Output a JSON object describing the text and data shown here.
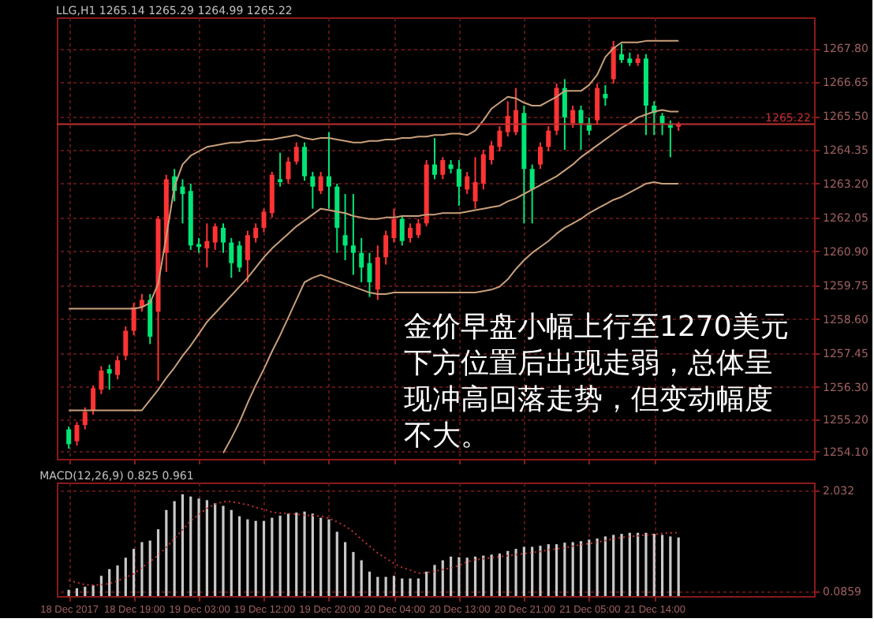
{
  "chart_data": [
    {
      "type": "candlestick",
      "title": "LLG,H1 1265.14 1265.29 1264.99 1265.22",
      "categories": [
        null,
        null,
        null,
        null,
        null,
        null,
        null,
        null,
        null,
        null,
        null,
        null,
        null,
        null,
        null,
        null,
        null,
        null,
        null,
        null,
        null,
        null,
        null,
        null,
        null,
        null,
        null,
        null,
        null,
        null,
        null,
        null,
        null,
        null,
        null,
        null,
        null,
        null,
        null,
        null,
        null,
        null,
        null,
        null,
        null,
        null,
        null,
        null,
        null,
        null,
        null,
        null,
        null,
        null,
        null,
        null,
        null,
        null,
        null,
        null,
        null,
        null,
        null,
        null,
        null,
        null,
        null,
        null,
        null,
        null,
        null,
        null,
        null,
        null,
        null,
        null
      ],
      "ohlc": [
        [
          1254.85,
          1254.95,
          1254.2,
          1254.35
        ],
        [
          1254.45,
          1255.1,
          1254.3,
          1255.0
        ],
        [
          1255.0,
          1255.6,
          1254.85,
          1255.45
        ],
        [
          1255.5,
          1256.35,
          1255.35,
          1256.25
        ],
        [
          1256.2,
          1257.0,
          1256.05,
          1256.85
        ],
        [
          1256.9,
          1257.05,
          1256.2,
          1256.75
        ],
        [
          1256.7,
          1257.35,
          1256.55,
          1257.2
        ],
        [
          1257.35,
          1258.35,
          1257.2,
          1258.2
        ],
        [
          1258.2,
          1259.15,
          1258.05,
          1259.0
        ],
        [
          1259.0,
          1259.45,
          1258.85,
          1259.25
        ],
        [
          1259.25,
          1259.45,
          1257.75,
          1258.0
        ],
        [
          1258.85,
          1262.1,
          1256.5,
          1262.0
        ],
        [
          1260.85,
          1263.5,
          1260.2,
          1263.35
        ],
        [
          1263.45,
          1263.7,
          1262.6,
          1262.95
        ],
        [
          1263.1,
          1263.35,
          1261.85,
          1262.85
        ],
        [
          1262.95,
          1263.2,
          1260.95,
          1261.1
        ],
        [
          1261.15,
          1261.35,
          1260.85,
          1261.05
        ],
        [
          1261.0,
          1261.85,
          1260.35,
          1261.25
        ],
        [
          1261.2,
          1261.85,
          1260.95,
          1261.75
        ],
        [
          1261.7,
          1261.85,
          1260.85,
          1261.2
        ],
        [
          1261.2,
          1261.35,
          1260.0,
          1260.5
        ],
        [
          1261.1,
          1261.25,
          1260.2,
          1260.35
        ],
        [
          1260.6,
          1261.6,
          1259.85,
          1261.45
        ],
        [
          1261.35,
          1261.85,
          1261.2,
          1261.7
        ],
        [
          1261.7,
          1262.35,
          1261.55,
          1262.25
        ],
        [
          1262.2,
          1263.6,
          1262.05,
          1263.5
        ],
        [
          1263.35,
          1264.25,
          1263.1,
          1263.25
        ],
        [
          1263.35,
          1264.1,
          1263.2,
          1263.95
        ],
        [
          1263.95,
          1264.6,
          1263.85,
          1264.45
        ],
        [
          1264.45,
          1264.6,
          1263.3,
          1263.45
        ],
        [
          1263.45,
          1263.6,
          1262.35,
          1263.1
        ],
        [
          1262.95,
          1263.6,
          1262.85,
          1263.45
        ],
        [
          1263.45,
          1264.95,
          1262.35,
          1263.1
        ],
        [
          1263.1,
          1263.2,
          1260.85,
          1261.7
        ],
        [
          1261.45,
          1262.85,
          1260.6,
          1261.1
        ],
        [
          1261.1,
          1262.85,
          1260.1,
          1260.85
        ],
        [
          1260.85,
          1261.35,
          1259.85,
          1260.35
        ],
        [
          1260.5,
          1260.85,
          1259.35,
          1259.85
        ],
        [
          1259.6,
          1261.1,
          1259.25,
          1260.7
        ],
        [
          1260.7,
          1261.6,
          1260.45,
          1261.45
        ],
        [
          1261.35,
          1262.35,
          1261.2,
          1262.0
        ],
        [
          1262.0,
          1262.1,
          1261.1,
          1261.25
        ],
        [
          1261.35,
          1261.85,
          1261.2,
          1261.7
        ],
        [
          1261.45,
          1262.0,
          1261.35,
          1261.85
        ],
        [
          1261.85,
          1264.0,
          1261.75,
          1263.85
        ],
        [
          1263.85,
          1264.75,
          1263.35,
          1263.5
        ],
        [
          1263.5,
          1264.1,
          1263.35,
          1264.0
        ],
        [
          1263.85,
          1264.0,
          1263.55,
          1263.7
        ],
        [
          1263.7,
          1264.0,
          1262.45,
          1263.1
        ],
        [
          1263.0,
          1263.6,
          1262.85,
          1263.45
        ],
        [
          1262.6,
          1264.1,
          1262.35,
          1263.25
        ],
        [
          1263.2,
          1264.35,
          1263.0,
          1264.2
        ],
        [
          1264.0,
          1264.65,
          1263.85,
          1264.5
        ],
        [
          1264.45,
          1265.15,
          1264.3,
          1265.0
        ],
        [
          1264.95,
          1266.0,
          1264.8,
          1265.5
        ],
        [
          1264.95,
          1266.45,
          1264.85,
          1265.7
        ],
        [
          1265.6,
          1265.85,
          1261.85,
          1263.7
        ],
        [
          1263.7,
          1263.85,
          1261.85,
          1263.0
        ],
        [
          1263.85,
          1264.6,
          1263.7,
          1264.45
        ],
        [
          1264.45,
          1265.15,
          1264.3,
          1265.0
        ],
        [
          1265.0,
          1266.6,
          1264.85,
          1266.45
        ],
        [
          1266.45,
          1266.75,
          1264.35,
          1265.45
        ],
        [
          1265.25,
          1265.85,
          1265.1,
          1265.7
        ],
        [
          1265.7,
          1265.85,
          1264.35,
          1265.25
        ],
        [
          1265.25,
          1265.45,
          1264.85,
          1265.0
        ],
        [
          1265.35,
          1266.6,
          1265.2,
          1266.45
        ],
        [
          1266.25,
          1266.55,
          1265.85,
          1266.1
        ],
        [
          1266.75,
          1268.05,
          1266.6,
          1267.85
        ],
        [
          1267.6,
          1267.95,
          1267.3,
          1267.4
        ],
        [
          1267.45,
          1267.65,
          1267.2,
          1267.3
        ],
        [
          1267.3,
          1267.6,
          1267.2,
          1267.45
        ],
        [
          1267.45,
          1267.6,
          1264.85,
          1265.85
        ],
        [
          1265.85,
          1266.0,
          1264.85,
          1265.6
        ],
        [
          1265.5,
          1265.6,
          1264.85,
          1265.25
        ],
        [
          1265.2,
          1265.35,
          1264.1,
          1265.1
        ],
        [
          1265.14,
          1265.29,
          1264.99,
          1265.22
        ]
      ],
      "colors": [
        "#00e676",
        "#ff3333",
        "#ff3333",
        "#ff3333",
        "#ff3333",
        "#00e676",
        "#ff3333",
        "#ff3333",
        "#ff3333",
        "#ff3333",
        "#00e676",
        "#ff3333",
        "#ff3333",
        "#00e676",
        "#00e676",
        "#00e676",
        "#00e676",
        "#ff3333",
        "#ff3333",
        "#00e676",
        "#00e676",
        "#00e676",
        "#ff3333",
        "#ff3333",
        "#ff3333",
        "#ff3333",
        "#00e676",
        "#ff3333",
        "#ff3333",
        "#00e676",
        "#00e676",
        "#ff3333",
        "#00e676",
        "#00e676",
        "#00e676",
        "#00e676",
        "#00e676",
        "#00e676",
        "#ff3333",
        "#ff3333",
        "#ff3333",
        "#00e676",
        "#ff3333",
        "#ff3333",
        "#ff3333",
        "#00e676",
        "#ff3333",
        "#00e676",
        "#00e676",
        "#ff3333",
        "#ff3333",
        "#ff3333",
        "#ff3333",
        "#ff3333",
        "#ff3333",
        "#ff3333",
        "#00e676",
        "#00e676",
        "#ff3333",
        "#ff3333",
        "#ff3333",
        "#00e676",
        "#ff3333",
        "#00e676",
        "#00e676",
        "#ff3333",
        "#00e676",
        "#ff3333",
        "#00e676",
        "#00e676",
        "#ff3333",
        "#00e676",
        "#00e676",
        "#00e676",
        "#00e676",
        "#ff3333"
      ],
      "series": [
        {
          "type": "line",
          "color": "#c8a07a",
          "values": [
            1258.95,
            1258.95,
            1258.95,
            1258.95,
            1258.95,
            1258.95,
            1258.95,
            1258.95,
            1258.95,
            1259.0,
            1259.15,
            1259.8,
            1261.4,
            1263.1,
            1263.85,
            1264.15,
            1264.3,
            1264.45,
            1264.5,
            1264.55,
            1264.6,
            1264.6,
            1264.65,
            1264.65,
            1264.7,
            1264.7,
            1264.75,
            1264.8,
            1264.85,
            1264.75,
            1264.7,
            1264.75,
            1264.75,
            1264.7,
            1264.65,
            1264.6,
            1264.6,
            1264.65,
            1264.65,
            1264.7,
            1264.7,
            1264.75,
            1264.75,
            1264.8,
            1264.8,
            1264.85,
            1264.85,
            1264.9,
            1264.9,
            1264.85,
            1265.0,
            1265.35,
            1265.75,
            1265.95,
            1266.15,
            1266.1,
            1265.95,
            1265.85,
            1265.85,
            1266.0,
            1266.15,
            1266.35,
            1266.35,
            1266.35,
            1266.55,
            1266.9,
            1267.5,
            1267.8,
            1268.0,
            1268.0,
            1268.0,
            1268.05,
            1268.05,
            1268.05,
            1268.05,
            1268.05
          ]
        },
        {
          "type": "line",
          "color": "#c8a07a",
          "values": [
            1255.5,
            1255.5,
            1255.5,
            1255.5,
            1255.5,
            1255.5,
            1255.5,
            1255.5,
            1255.5,
            1255.5,
            1255.85,
            1256.2,
            1256.6,
            1256.95,
            1257.35,
            1257.7,
            1258.1,
            1258.5,
            1258.8,
            1259.1,
            1259.4,
            1259.7,
            1260.0,
            1260.35,
            1260.7,
            1261.0,
            1261.25,
            1261.5,
            1261.75,
            1261.95,
            1262.15,
            1262.35,
            1262.3,
            1262.25,
            1262.2,
            1262.1,
            1262.05,
            1262.0,
            1262.0,
            1262.05,
            1262.05,
            1262.1,
            1262.1,
            1262.1,
            1262.15,
            1262.15,
            1262.2,
            1262.2,
            1262.2,
            1262.25,
            1262.3,
            1262.35,
            1262.4,
            1262.45,
            1262.6,
            1262.7,
            1262.85,
            1263.0,
            1263.15,
            1263.3,
            1263.45,
            1263.65,
            1263.85,
            1264.1,
            1264.3,
            1264.5,
            1264.7,
            1264.9,
            1265.1,
            1265.25,
            1265.45,
            1265.55,
            1265.65,
            1265.7,
            1265.65,
            1265.65
          ]
        },
        {
          "type": "line",
          "color": "#c8a07a",
          "values": [
            null,
            null,
            null,
            null,
            null,
            null,
            null,
            null,
            null,
            null,
            null,
            null,
            null,
            null,
            null,
            null,
            null,
            null,
            null,
            1254.05,
            1254.55,
            1255.1,
            1255.75,
            1256.35,
            1256.9,
            1257.5,
            1258.05,
            1258.65,
            1259.25,
            1259.85,
            1260.0,
            1260.1,
            1260.0,
            1259.9,
            1259.8,
            1259.7,
            1259.6,
            1259.5,
            1259.45,
            1259.45,
            1259.5,
            1259.5,
            1259.5,
            1259.5,
            1259.5,
            1259.5,
            1259.5,
            1259.5,
            1259.5,
            1259.5,
            1259.5,
            1259.55,
            1259.6,
            1259.7,
            1259.95,
            1260.3,
            1260.6,
            1260.85,
            1261.05,
            1261.25,
            1261.5,
            1261.7,
            1261.85,
            1262.0,
            1262.2,
            1262.35,
            1262.5,
            1262.65,
            1262.75,
            1262.9,
            1263.05,
            1263.2,
            1263.25,
            1263.2,
            1263.2,
            1263.2
          ]
        }
      ],
      "ylim": [
        1253.85,
        1268.85
      ],
      "yticks": [
        {
          "value": 1267.8,
          "label": "1267.80"
        },
        {
          "value": 1266.65,
          "label": "1266.65"
        },
        {
          "value": 1265.5,
          "label": "1265.50"
        },
        {
          "value": 1264.35,
          "label": "1264.35"
        },
        {
          "value": 1263.2,
          "label": "1263.20"
        },
        {
          "value": 1262.05,
          "label": "1262.05"
        },
        {
          "value": 1260.9,
          "label": "1260.90"
        },
        {
          "value": 1259.75,
          "label": "1259.75"
        },
        {
          "value": 1258.6,
          "label": "1258.60"
        },
        {
          "value": 1257.45,
          "label": "1257.45"
        },
        {
          "value": 1256.3,
          "label": "1256.30"
        },
        {
          "value": 1255.2,
          "label": "1255.20"
        },
        {
          "value": 1254.1,
          "label": "1254.10"
        }
      ],
      "ref_lines": [
        {
          "axis": "y",
          "value": 1265.22,
          "label": "1265.22",
          "color": "#c03030"
        }
      ],
      "annotations": [
        "金价早盘小幅上行至1270美元下方位置后出现走弱，总体呈现冲高回落走势，但变动幅度不大。"
      ],
      "tick_labels": "y",
      "grid": true
    },
    {
      "type": "bar",
      "title": "MACD(12,26,9) 0.825 0.961",
      "categories": [
        "18 Dec 2017",
        null,
        null,
        null,
        null,
        null,
        null,
        null,
        "18 Dec 19:00",
        null,
        null,
        null,
        null,
        null,
        null,
        null,
        "19 Dec 03:00",
        null,
        null,
        null,
        null,
        null,
        null,
        null,
        "19 Dec 12:00",
        null,
        null,
        null,
        null,
        null,
        null,
        null,
        "19 Dec 20:00",
        null,
        null,
        null,
        null,
        null,
        null,
        null,
        "20 Dec 04:00",
        null,
        null,
        null,
        null,
        null,
        null,
        null,
        "20 Dec 13:00",
        null,
        null,
        null,
        null,
        null,
        null,
        null,
        "20 Dec 21:00",
        null,
        null,
        null,
        null,
        null,
        null,
        null,
        "21 Dec 05:00",
        null,
        null,
        null,
        null,
        null,
        null,
        null,
        "21 Dec 14:00",
        null,
        null,
        null
      ],
      "series": [
        {
          "type": "bar",
          "color": "#c8c8c8",
          "values": [
            0.12,
            0.15,
            0.18,
            0.21,
            0.39,
            0.52,
            0.59,
            0.74,
            0.91,
            1.04,
            1.07,
            1.29,
            1.66,
            1.83,
            1.96,
            1.92,
            1.88,
            1.85,
            1.79,
            1.74,
            1.66,
            1.54,
            1.48,
            1.45,
            1.45,
            1.51,
            1.55,
            1.59,
            1.61,
            1.63,
            1.59,
            1.51,
            1.48,
            1.24,
            1.04,
            0.85,
            0.69,
            0.47,
            0.37,
            0.37,
            0.39,
            0.34,
            0.34,
            0.34,
            0.47,
            0.6,
            0.69,
            0.76,
            0.75,
            0.74,
            0.76,
            0.78,
            0.8,
            0.82,
            0.87,
            0.91,
            0.95,
            0.95,
            0.97,
            1.0,
            1.0,
            1.03,
            1.04,
            1.06,
            1.09,
            1.11,
            1.15,
            1.18,
            1.2,
            1.22,
            1.22,
            1.22,
            1.2,
            1.18,
            1.15,
            1.13
          ]
        },
        {
          "type": "line",
          "color": "#c03030",
          "line_style": "dotted",
          "values": [
            0.3,
            0.26,
            0.22,
            0.21,
            0.22,
            0.24,
            0.29,
            0.36,
            0.43,
            0.55,
            0.66,
            0.79,
            0.94,
            1.11,
            1.28,
            1.45,
            1.57,
            1.69,
            1.77,
            1.82,
            1.82,
            1.79,
            1.76,
            1.71,
            1.67,
            1.62,
            1.6,
            1.59,
            1.58,
            1.56,
            1.55,
            1.54,
            1.5,
            1.43,
            1.35,
            1.24,
            1.09,
            0.96,
            0.83,
            0.73,
            0.63,
            0.55,
            0.5,
            0.44,
            0.45,
            0.48,
            0.51,
            0.54,
            0.59,
            0.66,
            0.7,
            0.72,
            0.74,
            0.76,
            0.78,
            0.8,
            0.82,
            0.84,
            0.86,
            0.89,
            0.91,
            0.93,
            0.96,
            0.99,
            1.01,
            1.04,
            1.07,
            1.1,
            1.13,
            1.15,
            1.16,
            1.18,
            1.19,
            1.21,
            1.22,
            1.22
          ]
        }
      ],
      "ylim": [
        0,
        2.19
      ],
      "yticks": [
        2.032,
        0.0859
      ],
      "grid": true
    }
  ]
}
